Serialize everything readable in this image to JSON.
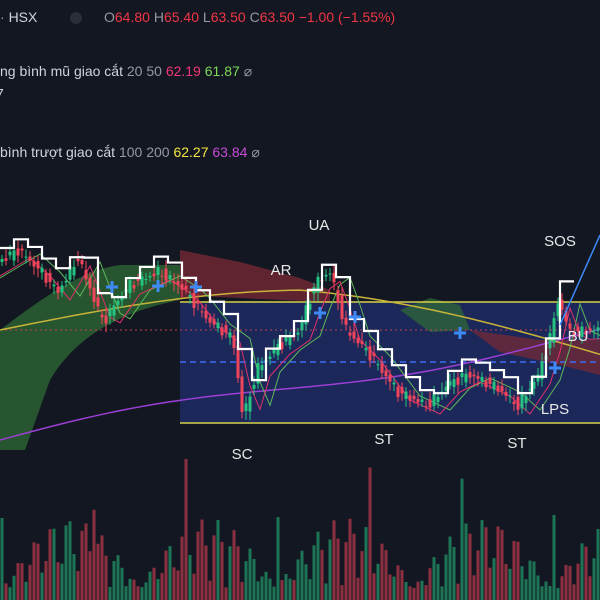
{
  "header": {
    "symbol": "HSX",
    "ohlc": [
      {
        "key": "O",
        "value": "64.80"
      },
      {
        "key": "H",
        "value": "65.40"
      },
      {
        "key": "L",
        "value": "63.50"
      },
      {
        "key": "C",
        "value": "63.50"
      }
    ],
    "change": "−1.00 (−1.55%)"
  },
  "indicators": [
    {
      "name": "ng bình mũ giao cắt",
      "params": "20 50",
      "values": [
        "62.19",
        "61.87"
      ]
    },
    {
      "name": "bình trượt giao cắt",
      "params": "100 200",
      "values": [
        "62.27",
        "63.84"
      ]
    }
  ],
  "fragment": "7",
  "annotations": [
    "AR",
    "UA",
    "SOS",
    "BU",
    "SC",
    "ST",
    "LPS",
    "ST"
  ]
}
